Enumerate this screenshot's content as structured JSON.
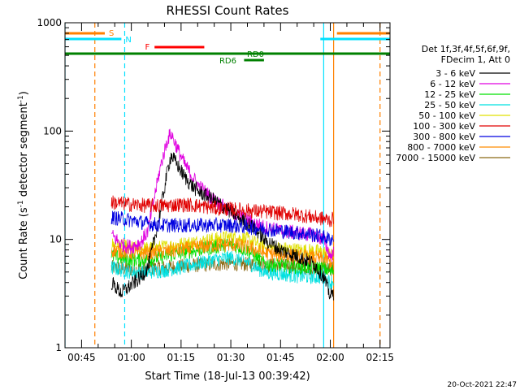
{
  "chart_data": {
    "type": "line",
    "title": "RHESSI Count Rates",
    "xlabel": "Start Time (18-Jul-13 00:39:42)",
    "ylabel_main": "Count Rate (s",
    "ylabel_sup1": "-1",
    "ylabel_mid": " detector segment",
    "ylabel_sup2": "-1",
    "ylabel_end": ")",
    "yscale": "log",
    "ylim": [
      1,
      1000
    ],
    "xlim": [
      "00:40",
      "02:18"
    ],
    "x_ticks": [
      "00:45",
      "01:00",
      "01:15",
      "01:30",
      "01:45",
      "02:00",
      "02:15"
    ],
    "y_ticks": [
      "1",
      "10",
      "100",
      "1000"
    ],
    "legend_header": [
      "Det 1f,3f,4f,5f,6f,9f,",
      "FDecim 1, Att 0"
    ],
    "legend": [
      {
        "name": "3 - 6 keV",
        "color": "#000000"
      },
      {
        "name": "6 - 12 keV",
        "color": "#e000e0"
      },
      {
        "name": "12 - 25 keV",
        "color": "#00e000"
      },
      {
        "name": "25 - 50 keV",
        "color": "#00e0e0"
      },
      {
        "name": "50 - 100 keV",
        "color": "#e0e000"
      },
      {
        "name": "100 - 300 keV",
        "color": "#e00000"
      },
      {
        "name": "300 - 800 keV",
        "color": "#0000e0"
      },
      {
        "name": "800 - 7000 keV",
        "color": "#ff8c00"
      },
      {
        "name": "7000 - 15000 keV",
        "color": "#8b6914"
      }
    ],
    "annotations": {
      "saa": {
        "label": "S",
        "color": "#ff8000",
        "intervals": [
          [
            "00:40",
            "00:52"
          ],
          [
            "02:02",
            "02:18"
          ]
        ]
      },
      "night": {
        "label": "N",
        "color": "#00e0ff",
        "intervals": [
          [
            "00:40",
            "00:57"
          ],
          [
            "01:57",
            "02:18"
          ]
        ]
      },
      "flare": {
        "label": "F",
        "color": "#ff0000",
        "intervals": [
          [
            "01:07",
            "01:22"
          ]
        ]
      },
      "rd0": {
        "label": "RD0",
        "color": "#008000",
        "intervals": [
          [
            "00:40",
            "02:18"
          ]
        ]
      },
      "rd6": {
        "label": "RD6",
        "color": "#008000",
        "intervals": [
          [
            "01:34",
            "01:40"
          ]
        ]
      }
    },
    "vlines": [
      {
        "time": "00:40",
        "color": "#00e0ff",
        "style": "solid"
      },
      {
        "time": "00:49",
        "color": "#ff8000",
        "style": "dashed"
      },
      {
        "time": "00:58",
        "color": "#00e0ff",
        "style": "dashed"
      },
      {
        "time": "01:58",
        "color": "#00e0ff",
        "style": "solid"
      },
      {
        "time": "02:01",
        "color": "#ff8000",
        "style": "solid"
      },
      {
        "time": "02:15",
        "color": "#ff8000",
        "style": "dashed"
      }
    ],
    "series": [
      {
        "name": "3 - 6 keV",
        "color": "#000000",
        "x": [
          "00:54",
          "00:57",
          "01:00",
          "01:03",
          "01:05",
          "01:07",
          "01:09",
          "01:11",
          "01:12",
          "01:14",
          "01:16",
          "01:18",
          "01:20",
          "01:25",
          "01:30",
          "01:35",
          "01:38",
          "01:40",
          "01:45",
          "01:50",
          "01:55",
          "01:58",
          "02:00",
          "02:01"
        ],
        "values": [
          4,
          3.2,
          3.8,
          4.5,
          5.5,
          10,
          20,
          45,
          60,
          48,
          38,
          32,
          28,
          23,
          18,
          14,
          12,
          10,
          8,
          7,
          6,
          4.5,
          3,
          3.2
        ]
      },
      {
        "name": "6 - 12 keV",
        "color": "#e000e0",
        "x": [
          "00:54",
          "00:57",
          "01:00",
          "01:03",
          "01:05",
          "01:07",
          "01:09",
          "01:11",
          "01:12",
          "01:14",
          "01:16",
          "01:18",
          "01:20",
          "01:25",
          "01:30",
          "01:35",
          "01:40",
          "01:45",
          "01:50",
          "01:55",
          "01:58",
          "02:00",
          "02:01"
        ],
        "values": [
          11,
          9,
          8.5,
          9.5,
          12,
          25,
          50,
          85,
          95,
          68,
          50,
          40,
          32,
          23,
          18,
          15,
          13,
          12,
          11.5,
          11,
          10,
          7,
          7.5
        ]
      },
      {
        "name": "12 - 25 keV",
        "color": "#00e000",
        "x": [
          "00:54",
          "01:00",
          "01:05",
          "01:10",
          "01:15",
          "01:20",
          "01:25",
          "01:30",
          "01:35",
          "01:40",
          "01:45",
          "01:50",
          "01:55",
          "01:58",
          "02:00",
          "02:01"
        ],
        "values": [
          7,
          6.5,
          6.5,
          7,
          7.5,
          8,
          8.5,
          9,
          8,
          6,
          5.8,
          5.6,
          5.5,
          5.5,
          5,
          5.2
        ]
      },
      {
        "name": "25 - 50 keV",
        "color": "#00e0e0",
        "x": [
          "00:54",
          "01:00",
          "01:05",
          "01:10",
          "01:15",
          "01:20",
          "01:25",
          "01:30",
          "01:35",
          "01:40",
          "01:45",
          "01:50",
          "01:55",
          "01:58",
          "02:00",
          "02:01"
        ],
        "values": [
          5.5,
          5,
          5,
          5.2,
          5.5,
          6,
          6.5,
          6.8,
          6.2,
          5,
          4.8,
          4.6,
          4.5,
          4.5,
          4,
          4.2
        ]
      },
      {
        "name": "50 - 100 keV",
        "color": "#e0e000",
        "x": [
          "00:54",
          "01:00",
          "01:05",
          "01:10",
          "01:15",
          "01:20",
          "01:25",
          "01:30",
          "01:35",
          "01:40",
          "01:45",
          "01:50",
          "01:55",
          "01:58",
          "02:00",
          "02:01"
        ],
        "values": [
          9,
          8.3,
          8.2,
          8.5,
          9,
          9.5,
          10,
          10.5,
          10,
          8.5,
          8.2,
          8,
          7.8,
          7.6,
          7,
          7.2
        ]
      },
      {
        "name": "100 - 300 keV",
        "color": "#e00000",
        "x": [
          "00:54",
          "01:00",
          "01:05",
          "01:10",
          "01:15",
          "01:20",
          "01:25",
          "01:30",
          "01:35",
          "01:40",
          "01:45",
          "01:50",
          "01:55",
          "01:58",
          "02:00",
          "02:01"
        ],
        "values": [
          22,
          21,
          20.5,
          20.5,
          21,
          20.5,
          19.5,
          19,
          18.5,
          18,
          17.5,
          17,
          16,
          15.5,
          15,
          15.5
        ]
      },
      {
        "name": "300 - 800 keV",
        "color": "#0000e0",
        "x": [
          "00:54",
          "01:00",
          "01:05",
          "01:10",
          "01:15",
          "01:20",
          "01:25",
          "01:30",
          "01:35",
          "01:40",
          "01:45",
          "01:50",
          "01:55",
          "01:58",
          "02:00",
          "02:01"
        ],
        "values": [
          16,
          15,
          14,
          13.5,
          13.5,
          13.5,
          13.5,
          13.5,
          13,
          12.5,
          12,
          11.5,
          11,
          10.5,
          10,
          10.2
        ]
      },
      {
        "name": "800 - 7000 keV",
        "color": "#ff8c00",
        "x": [
          "00:54",
          "01:00",
          "01:05",
          "01:10",
          "01:15",
          "01:20",
          "01:25",
          "01:30",
          "01:35",
          "01:40",
          "01:45",
          "01:50",
          "01:55",
          "01:58",
          "02:00",
          "02:01"
        ],
        "values": [
          8,
          7.5,
          7.5,
          7.7,
          8,
          8.5,
          8.8,
          9,
          8.5,
          7.5,
          7.2,
          7,
          6.8,
          6.6,
          6.2,
          6.4
        ]
      },
      {
        "name": "7000 - 15000 keV",
        "color": "#8b6914",
        "x": [
          "00:54",
          "01:00",
          "01:10",
          "01:20",
          "01:30",
          "01:40",
          "01:50",
          "01:58",
          "02:01"
        ],
        "values": [
          5.5,
          5.3,
          5.5,
          5.8,
          6,
          5.8,
          5.6,
          5.4,
          5.3
        ]
      }
    ]
  },
  "footer": {
    "timestamp": "20-Oct-2021 22:47"
  }
}
